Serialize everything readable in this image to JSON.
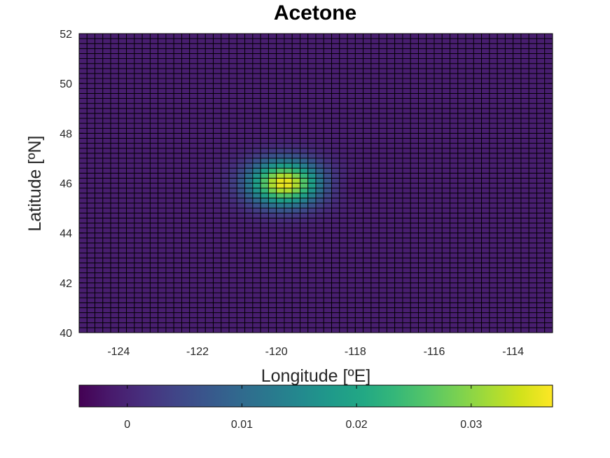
{
  "chart_data": {
    "type": "heatmap",
    "title": "Acetone",
    "xlabel": "Longitude [ºE]",
    "ylabel": "Latitude [ºN]",
    "xlim": [
      -125,
      -113
    ],
    "ylim": [
      40,
      52
    ],
    "x_ticks": [
      "-124",
      "-122",
      "-120",
      "-118",
      "-116",
      "-114"
    ],
    "x_tick_values": [
      -124,
      -122,
      -120,
      -118,
      -116,
      -114
    ],
    "y_ticks": [
      "40",
      "42",
      "44",
      "46",
      "48",
      "50",
      "52"
    ],
    "y_tick_values": [
      40,
      42,
      44,
      46,
      48,
      50,
      52
    ],
    "grid": {
      "lon_min": -125,
      "lon_max": -113,
      "lon_cells": 60,
      "lat_min": 40,
      "lat_max": 52,
      "lat_cells": 60
    },
    "background_value": -0.0009,
    "plumes": [
      {
        "lon": -119.8,
        "lat": 46.0,
        "peak": 0.0375,
        "sigma_deg": 0.62
      },
      {
        "lon": -118.2,
        "lat": 45.9,
        "peak": -0.0012,
        "sigma_deg": 0.35
      }
    ],
    "colorbar": {
      "colormap": "viridis",
      "clim": [
        -0.0042,
        0.0371
      ],
      "ticks": [
        "0",
        "0.01",
        "0.02",
        "0.03"
      ],
      "tick_values": [
        0,
        0.01,
        0.02,
        0.03
      ],
      "placement": "bottom"
    }
  }
}
